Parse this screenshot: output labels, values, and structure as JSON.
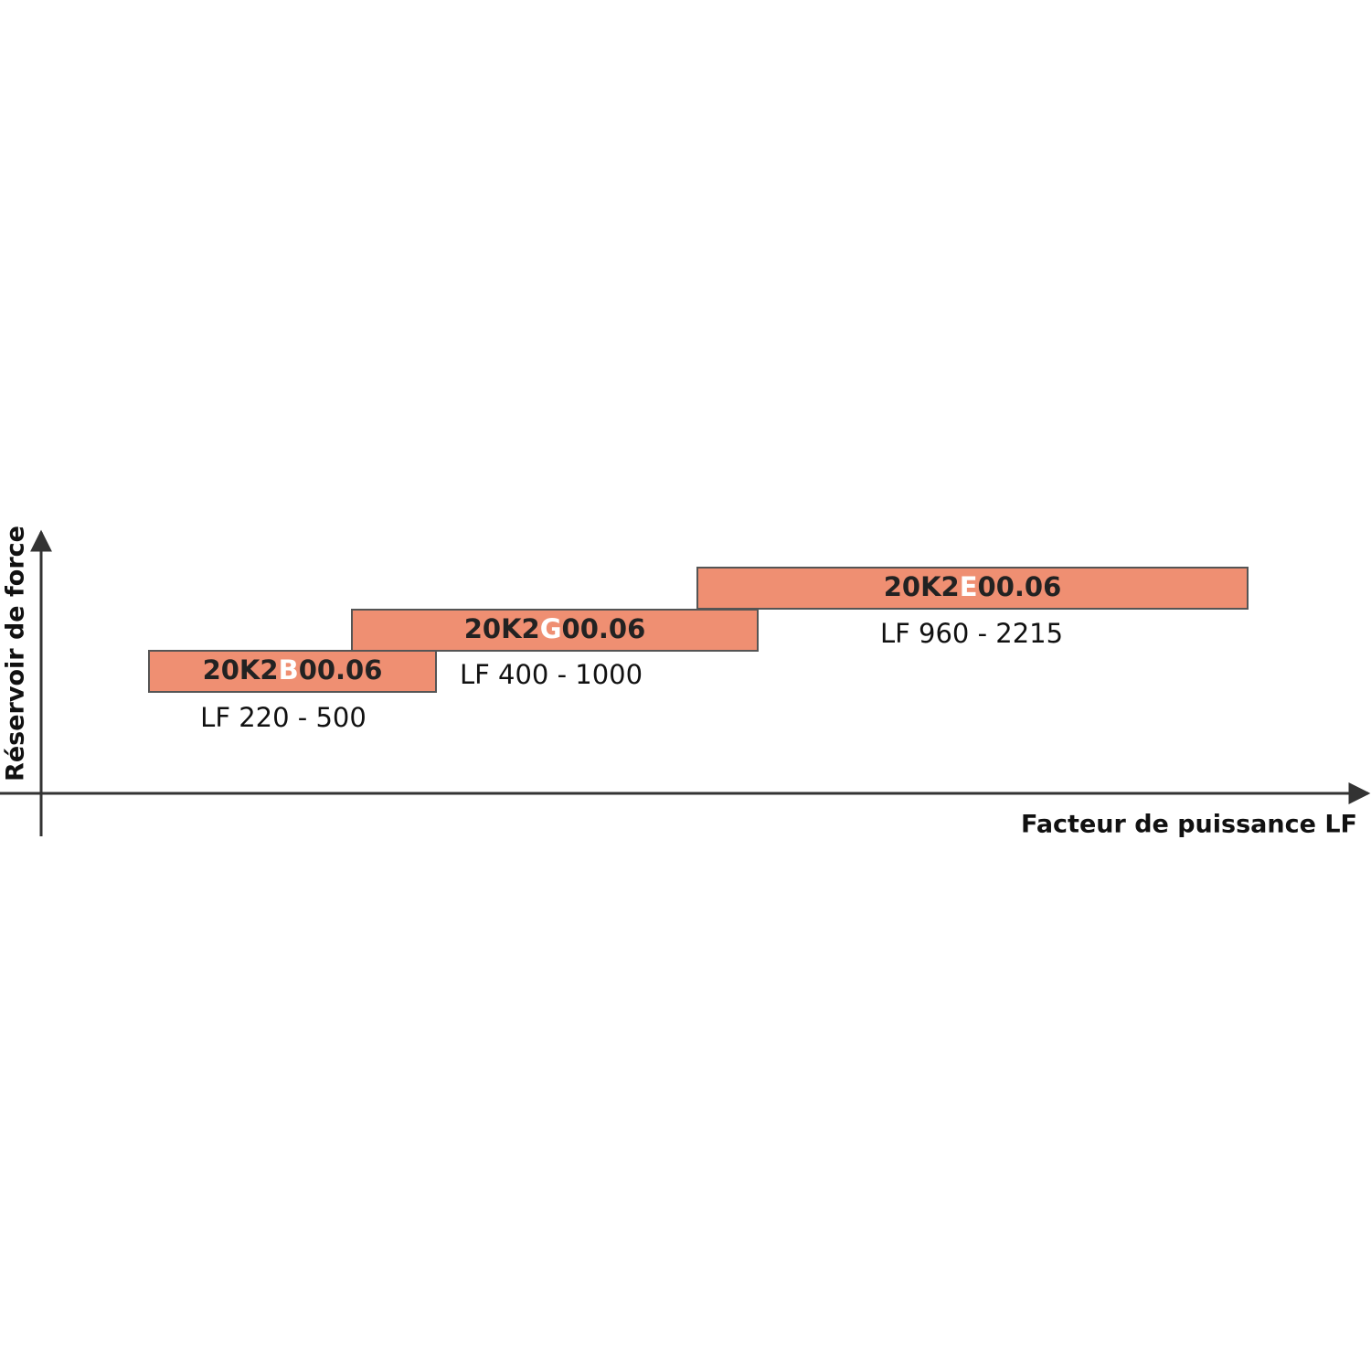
{
  "axes": {
    "y_label": "Réservoir de force",
    "x_label": "Facteur de puissance LF"
  },
  "items": [
    {
      "code_prefix": "20K2",
      "code_letter": "B",
      "code_suffix": "00.06",
      "range": "LF 220 - 500"
    },
    {
      "code_prefix": "20K2",
      "code_letter": "G",
      "code_suffix": "00.06",
      "range": "LF 400 - 1000"
    },
    {
      "code_prefix": "20K2",
      "code_letter": "E",
      "code_suffix": "00.06",
      "range": "LF 960 - 2215"
    }
  ]
}
